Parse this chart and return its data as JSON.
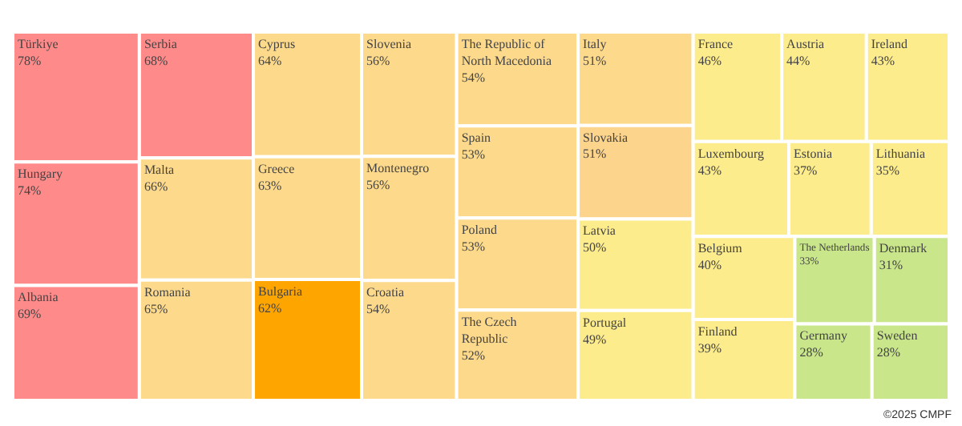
{
  "chart_data": {
    "type": "other",
    "categories": [
      "Türkiye",
      "Hungary",
      "Albania",
      "Serbia",
      "Malta",
      "Romania",
      "Cyprus",
      "Greece",
      "Bulgaria",
      "Slovenia",
      "Montenegro",
      "Croatia",
      "The Republic of North Macedonia",
      "Spain",
      "Poland",
      "The Czech Republic",
      "Italy",
      "Slovakia",
      "Latvia",
      "Portugal",
      "France",
      "Austria",
      "Ireland",
      "Luxembourg",
      "Estonia",
      "Lithuania",
      "Belgium",
      "Finland",
      "The Netherlands",
      "Denmark",
      "Germany",
      "Sweden"
    ],
    "values": [
      78,
      74,
      69,
      68,
      66,
      65,
      64,
      63,
      62,
      56,
      56,
      54,
      54,
      53,
      53,
      52,
      51,
      51,
      50,
      49,
      46,
      44,
      43,
      43,
      37,
      35,
      40,
      39,
      33,
      31,
      28,
      28
    ],
    "value_labels": [
      "78%",
      "74%",
      "69%",
      "68%",
      "66%",
      "65%",
      "64%",
      "63%",
      "62%",
      "56%",
      "56%",
      "54%",
      "54%",
      "53%",
      "53%",
      "52%",
      "51%",
      "51%",
      "50%",
      "49%",
      "46%",
      "44%",
      "43%",
      "43%",
      "37%",
      "35%",
      "40%",
      "39%",
      "33%",
      "31%",
      "28%",
      "28%"
    ],
    "colors": [
      "#ff8a8a",
      "#ff8a8a",
      "#ff8a8a",
      "#ff8a8a",
      "#fdd98b",
      "#fdd98b",
      "#fdd98b",
      "#fdd98b",
      "#ffa500",
      "#fdd98b",
      "#fdd98b",
      "#fdd98b",
      "#fdd98b",
      "#fdd98b",
      "#fdd98b",
      "#fdd98b",
      "#fdd98b",
      "#fdd48b",
      "#fdec8b",
      "#fdec8b",
      "#fdec8b",
      "#fdec8b",
      "#fdec8b",
      "#fdec8b",
      "#fdec8b",
      "#fdec8b",
      "#fdec8b",
      "#fdec8b",
      "#c9e68b",
      "#c9e68b",
      "#c9e68b",
      "#c9e68b"
    ],
    "annotations": [
      "©2025 CMPF"
    ]
  }
}
